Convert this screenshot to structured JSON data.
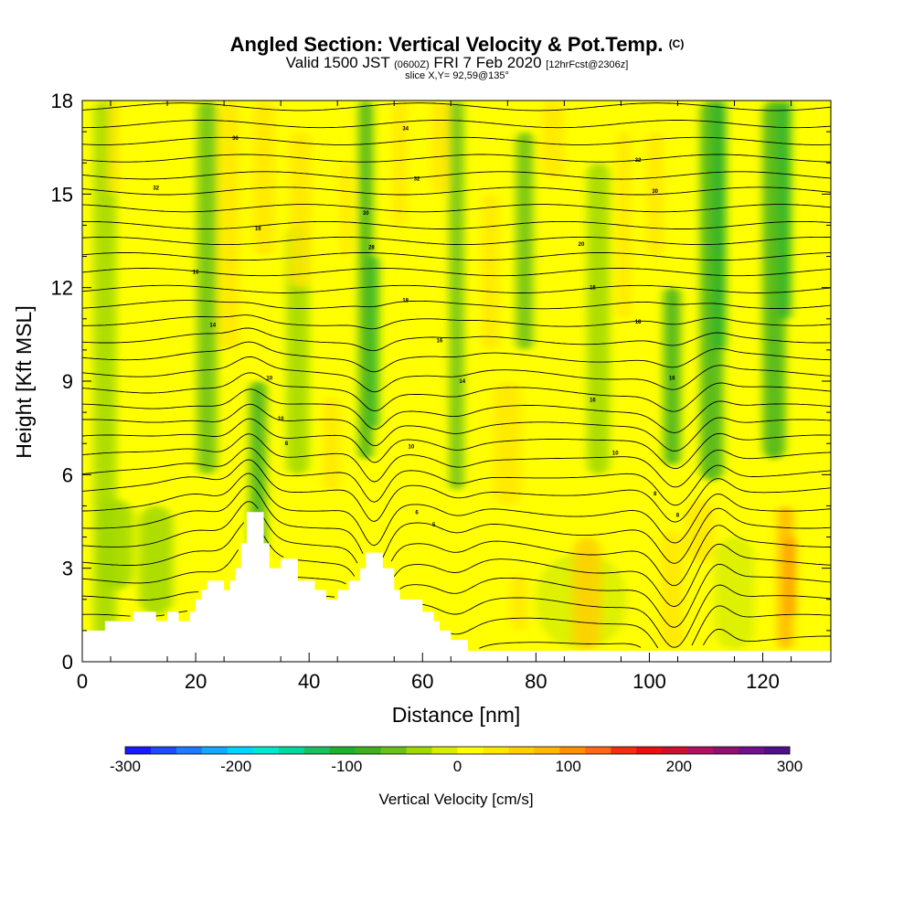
{
  "header": {
    "title_main": "Angled Section: Vertical Velocity & Pot.Temp.",
    "title_mark": "(C)",
    "valid_prefix": "Valid 1500 JST",
    "valid_z": "(0600Z)",
    "valid_date": "FRI 7 Feb 2020",
    "valid_fcst": "[12hrFcst@2306z]",
    "slice": "slice X,Y= 92,59@135°"
  },
  "chart_data": {
    "type": "heatmap",
    "xlabel": "Distance [nm]",
    "ylabel": "Height [Kft MSL]",
    "xlim": [
      0,
      132
    ],
    "ylim": [
      0,
      18
    ],
    "x_ticks": [
      "0",
      "20",
      "40",
      "60",
      "80",
      "100",
      "120"
    ],
    "y_ticks": [
      "0",
      "3",
      "6",
      "9",
      "12",
      "15",
      "18"
    ],
    "colorbar": {
      "title": "Vertical Velocity [cm/s]",
      "range": [
        -300,
        300
      ],
      "tick_labels": [
        "-300",
        "-200",
        "-100",
        "0",
        "100",
        "200",
        "300"
      ],
      "colors": [
        "#1a1aff",
        "#1e4bff",
        "#1e7bff",
        "#14a8ff",
        "#00d4ff",
        "#00e8d0",
        "#00d8a0",
        "#18c060",
        "#20b030",
        "#40b020",
        "#68c018",
        "#a0d800",
        "#d8ee00",
        "#ffff00",
        "#ffe800",
        "#ffd000",
        "#ffb800",
        "#ff9000",
        "#ff6818",
        "#f03010",
        "#e81010",
        "#d01030",
        "#b01060",
        "#901070",
        "#70108a",
        "#50108a"
      ]
    },
    "terrain_kft": [
      [
        0,
        1.0
      ],
      [
        4,
        1.0
      ],
      [
        4,
        1.3
      ],
      [
        9,
        1.3
      ],
      [
        9,
        1.6
      ],
      [
        13,
        1.6
      ],
      [
        13,
        1.3
      ],
      [
        15,
        1.3
      ],
      [
        15,
        1.6
      ],
      [
        17,
        1.6
      ],
      [
        17,
        1.3
      ],
      [
        19,
        1.3
      ],
      [
        19,
        1.6
      ],
      [
        20,
        1.6
      ],
      [
        20,
        2.0
      ],
      [
        21,
        2.0
      ],
      [
        21,
        2.3
      ],
      [
        22,
        2.3
      ],
      [
        22,
        2.6
      ],
      [
        25,
        2.6
      ],
      [
        25,
        2.3
      ],
      [
        26,
        2.3
      ],
      [
        26,
        2.6
      ],
      [
        27,
        2.6
      ],
      [
        27,
        3.0
      ],
      [
        28,
        3.0
      ],
      [
        28,
        3.8
      ],
      [
        29,
        3.8
      ],
      [
        29,
        4.8
      ],
      [
        32,
        4.8
      ],
      [
        32,
        3.8
      ],
      [
        33,
        3.8
      ],
      [
        33,
        3.0
      ],
      [
        35,
        3.0
      ],
      [
        35,
        3.3
      ],
      [
        38,
        3.3
      ],
      [
        38,
        2.6
      ],
      [
        41,
        2.6
      ],
      [
        41,
        2.3
      ],
      [
        43,
        2.3
      ],
      [
        43,
        2.0
      ],
      [
        45,
        2.0
      ],
      [
        45,
        2.3
      ],
      [
        47,
        2.3
      ],
      [
        47,
        2.6
      ],
      [
        49,
        2.6
      ],
      [
        49,
        3.0
      ],
      [
        50,
        3.0
      ],
      [
        50,
        3.5
      ],
      [
        53,
        3.5
      ],
      [
        53,
        3.0
      ],
      [
        55,
        3.0
      ],
      [
        55,
        2.3
      ],
      [
        56,
        2.3
      ],
      [
        56,
        2.0
      ],
      [
        60,
        2.0
      ],
      [
        60,
        1.6
      ],
      [
        62,
        1.6
      ],
      [
        62,
        1.3
      ],
      [
        63,
        1.3
      ],
      [
        63,
        1.0
      ],
      [
        65,
        1.0
      ],
      [
        65,
        0.7
      ],
      [
        68,
        0.7
      ],
      [
        68,
        0.35
      ],
      [
        132,
        0.35
      ]
    ],
    "velocity_bands_cm_s": [
      {
        "x": 4,
        "w": 4,
        "y0": 0.4,
        "y1": 18,
        "v": -30
      },
      {
        "x": 22,
        "w": 3.5,
        "y0": 6,
        "y1": 18,
        "v": -55
      },
      {
        "x": 31,
        "w": 3,
        "y0": 3.5,
        "y1": 9,
        "v": -90
      },
      {
        "x": 38,
        "w": 4,
        "y0": 6,
        "y1": 14,
        "v": -30
      },
      {
        "x": 50,
        "w": 2.5,
        "y0": 6.5,
        "y1": 18,
        "v": -75
      },
      {
        "x": 51.5,
        "w": 1.5,
        "y0": 7.5,
        "y1": 13,
        "v": -100
      },
      {
        "x": 66,
        "w": 2.5,
        "y0": 5.5,
        "y1": 18,
        "v": -50
      },
      {
        "x": 78,
        "w": 3,
        "y0": 10,
        "y1": 17,
        "v": -60
      },
      {
        "x": 91,
        "w": 4,
        "y0": 6,
        "y1": 16,
        "v": -35
      },
      {
        "x": 104,
        "w": 3,
        "y0": 6.3,
        "y1": 12,
        "v": -80
      },
      {
        "x": 111,
        "w": 4,
        "y0": 5.8,
        "y1": 18,
        "v": -90
      },
      {
        "x": 112.5,
        "w": 2,
        "y0": 10,
        "y1": 18,
        "v": -115
      },
      {
        "x": 122,
        "w": 4,
        "y0": 6.5,
        "y1": 18,
        "v": -75
      },
      {
        "x": 124,
        "w": 2,
        "y0": 11,
        "y1": 18,
        "v": -105
      },
      {
        "x": 13,
        "w": 6,
        "y0": 1.5,
        "y1": 5,
        "v": -25
      },
      {
        "x": 6,
        "w": 6,
        "y0": 2.3,
        "y1": 5.2,
        "v": -25
      },
      {
        "x": 88,
        "w": 16,
        "y0": 0.4,
        "y1": 3.5,
        "v": -15
      },
      {
        "x": 115,
        "w": 7,
        "y0": 0.4,
        "y1": 4,
        "v": -15
      },
      {
        "x": 5.5,
        "w": 2,
        "y0": 15,
        "y1": 18,
        "v": 45
      },
      {
        "x": 26,
        "w": 3.5,
        "y0": 10,
        "y1": 18,
        "v": 45
      },
      {
        "x": 32,
        "w": 4,
        "y0": 13,
        "y1": 18,
        "v": 40
      },
      {
        "x": 38.5,
        "w": 4,
        "y0": 12,
        "y1": 17,
        "v": 30
      },
      {
        "x": 44,
        "w": 3,
        "y0": 5.5,
        "y1": 8.5,
        "v": 25
      },
      {
        "x": 46.5,
        "w": 2,
        "y0": 13,
        "y1": 16,
        "v": 30
      },
      {
        "x": 56,
        "w": 2.5,
        "y0": 14,
        "y1": 18,
        "v": 45
      },
      {
        "x": 63,
        "w": 3,
        "y0": 15,
        "y1": 18,
        "v": 35
      },
      {
        "x": 72,
        "w": 3,
        "y0": 10,
        "y1": 15,
        "v": 40
      },
      {
        "x": 83,
        "w": 4,
        "y0": 15.5,
        "y1": 18,
        "v": 40
      },
      {
        "x": 95.5,
        "w": 2.5,
        "y0": 11,
        "y1": 17,
        "v": 40
      },
      {
        "x": 101,
        "w": 3,
        "y0": 13,
        "y1": 17,
        "v": 35
      },
      {
        "x": 75,
        "w": 5,
        "y0": 5.0,
        "y1": 9,
        "v": 25
      },
      {
        "x": 89,
        "w": 5,
        "y0": 0.4,
        "y1": 4.0,
        "v": 55
      },
      {
        "x": 104,
        "w": 4,
        "y0": 0.4,
        "y1": 4.2,
        "v": 40
      },
      {
        "x": 109,
        "w": 5,
        "y0": 3.2,
        "y1": 5.2,
        "v": 40
      },
      {
        "x": 124,
        "w": 3,
        "y0": 0.4,
        "y1": 5.0,
        "v": 70
      },
      {
        "x": 125,
        "w": 1.5,
        "y0": 1.5,
        "y1": 4.0,
        "v": 95
      },
      {
        "x": 77,
        "w": 3,
        "y0": 1.0,
        "y1": 2.8,
        "v": 30
      }
    ],
    "theta_contours": {
      "base_kft": [
        0.7,
        1.4,
        2.0,
        2.6,
        3.2,
        3.8,
        4.4,
        4.95,
        5.55,
        6.05,
        6.6,
        7.15,
        7.65,
        8.15,
        8.7,
        9.25,
        9.8,
        10.35,
        10.9,
        11.45,
        11.95,
        12.5,
        13.0,
        13.5,
        14.0,
        14.55,
        15.1,
        15.6,
        16.15,
        16.7,
        17.25,
        17.8
      ],
      "labels": [
        {
          "text": "36",
          "x": 27,
          "y": 16.8
        },
        {
          "text": "32",
          "x": 13,
          "y": 15.2
        },
        {
          "text": "16",
          "x": 31,
          "y": 13.9
        },
        {
          "text": "16",
          "x": 20,
          "y": 12.5
        },
        {
          "text": "14",
          "x": 23,
          "y": 10.8
        },
        {
          "text": "10",
          "x": 33,
          "y": 9.1
        },
        {
          "text": "10",
          "x": 35,
          "y": 7.8
        },
        {
          "text": "8",
          "x": 36,
          "y": 7.0
        },
        {
          "text": "34",
          "x": 57,
          "y": 17.1
        },
        {
          "text": "32",
          "x": 59,
          "y": 15.5
        },
        {
          "text": "30",
          "x": 50,
          "y": 14.4
        },
        {
          "text": "28",
          "x": 51,
          "y": 13.3
        },
        {
          "text": "18",
          "x": 57,
          "y": 11.6
        },
        {
          "text": "16",
          "x": 63,
          "y": 10.3
        },
        {
          "text": "14",
          "x": 67,
          "y": 9.0
        },
        {
          "text": "10",
          "x": 58,
          "y": 6.9
        },
        {
          "text": "6",
          "x": 59,
          "y": 4.8
        },
        {
          "text": "5",
          "x": 62,
          "y": 4.4
        },
        {
          "text": "32",
          "x": 98,
          "y": 16.1
        },
        {
          "text": "30",
          "x": 101,
          "y": 15.1
        },
        {
          "text": "20",
          "x": 88,
          "y": 13.4
        },
        {
          "text": "18",
          "x": 90,
          "y": 12.0
        },
        {
          "text": "18",
          "x": 98,
          "y": 10.9
        },
        {
          "text": "16",
          "x": 104,
          "y": 9.1
        },
        {
          "text": "16",
          "x": 90,
          "y": 8.4
        },
        {
          "text": "10",
          "x": 94,
          "y": 6.7
        },
        {
          "text": "8",
          "x": 101,
          "y": 5.4
        },
        {
          "text": "8",
          "x": 105,
          "y": 4.7
        }
      ]
    }
  }
}
